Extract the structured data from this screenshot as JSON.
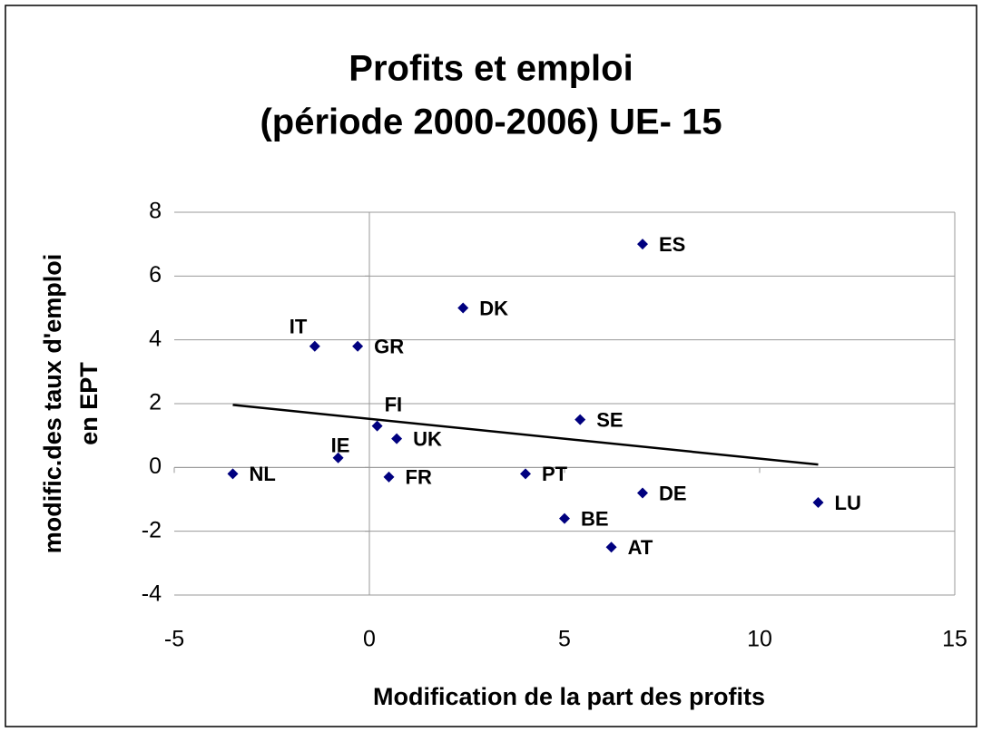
{
  "chart_data": {
    "type": "scatter",
    "title": [
      "Profits et emploi",
      "(période 2000-2006) UE- 15"
    ],
    "xlabel": "Modification de la part des profits",
    "ylabel": [
      "modific.des taux d'emploi",
      "en EPT"
    ],
    "labels": [
      "ES",
      "DK",
      "IT",
      "GR",
      "FI",
      "SE",
      "UK",
      "IE",
      "NL",
      "FR",
      "PT",
      "DE",
      "LU",
      "BE",
      "AT"
    ],
    "x": [
      7.0,
      2.4,
      -1.4,
      -0.3,
      0.2,
      5.4,
      0.7,
      -0.8,
      -3.5,
      0.5,
      4.0,
      7.0,
      11.5,
      5.0,
      6.2
    ],
    "y": [
      7.0,
      5.0,
      3.8,
      3.8,
      1.3,
      1.5,
      0.9,
      0.3,
      -0.2,
      -0.3,
      -0.2,
      -0.8,
      -1.1,
      -1.6,
      -2.5
    ],
    "color": "#00007f",
    "trendline": {
      "x": [
        -3.5,
        11.5
      ],
      "y": [
        1.96,
        0.09
      ],
      "color": "#000000"
    },
    "xlim": [
      -5,
      15
    ],
    "xticks": [
      -5,
      0,
      5,
      10,
      15
    ],
    "ylim": [
      -4,
      8
    ],
    "yticks": [
      -4,
      -2,
      0,
      2,
      4,
      6,
      8
    ],
    "grid": true
  }
}
